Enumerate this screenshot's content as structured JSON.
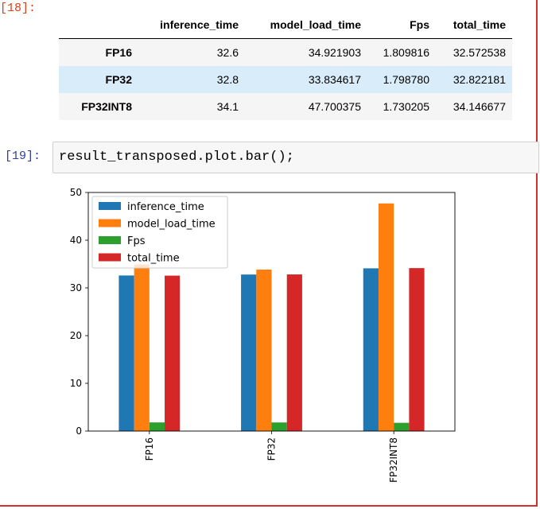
{
  "output_prompt": "[18]:",
  "input_prompt": "[19]:",
  "code": "result_transposed.plot.bar();",
  "table": {
    "columns": [
      "inference_time",
      "model_load_time",
      "Fps",
      "total_time"
    ],
    "rows": [
      {
        "index": "FP16",
        "cells": [
          "32.6",
          "34.921903",
          "1.809816",
          "32.572538"
        ]
      },
      {
        "index": "FP32",
        "cells": [
          "32.8",
          "33.834617",
          "1.798780",
          "32.822181"
        ]
      },
      {
        "index": "FP32INT8",
        "cells": [
          "34.1",
          "47.700375",
          "1.730205",
          "34.146677"
        ]
      }
    ]
  },
  "chart_data": {
    "type": "bar",
    "categories": [
      "FP16",
      "FP32",
      "FP32INT8"
    ],
    "series": [
      {
        "name": "inference_time",
        "color": "#1f77b4",
        "values": [
          32.6,
          32.8,
          34.1
        ]
      },
      {
        "name": "model_load_time",
        "color": "#ff7f0e",
        "values": [
          34.921903,
          33.834617,
          47.700375
        ]
      },
      {
        "name": "Fps",
        "color": "#2ca02c",
        "values": [
          1.809816,
          1.79878,
          1.730205
        ]
      },
      {
        "name": "total_time",
        "color": "#d62728",
        "values": [
          32.572538,
          32.822181,
          34.146677
        ]
      }
    ],
    "ylim": [
      0,
      50
    ],
    "yticks": [
      0,
      10,
      20,
      30,
      40,
      50
    ],
    "legend": "top-left",
    "grid": false
  }
}
